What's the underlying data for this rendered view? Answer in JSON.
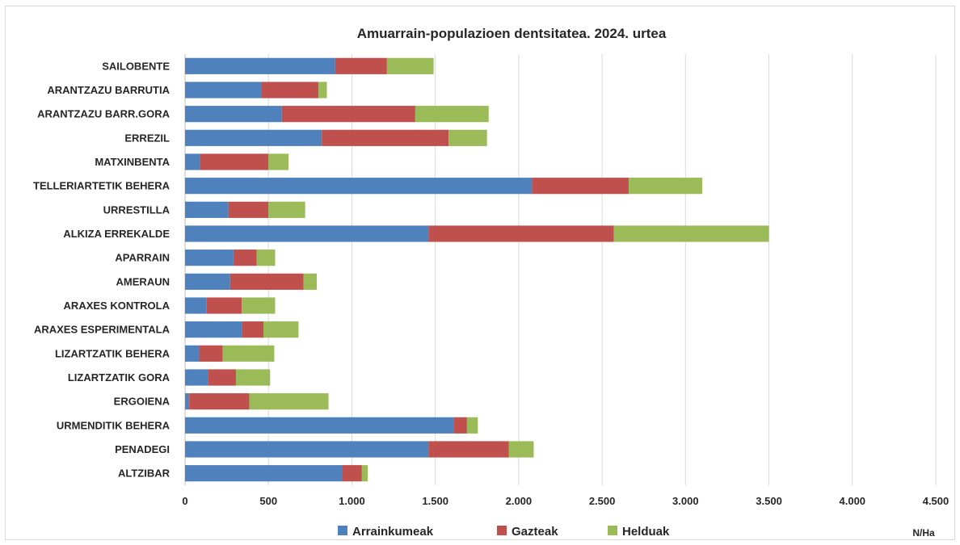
{
  "chart_data": {
    "type": "bar",
    "orientation": "horizontal",
    "stacked": true,
    "title": "Amuarrain-populazioen dentsitatea. 2024. urtea",
    "xlabel": "",
    "ylabel": "",
    "unit_label": "N/Ha",
    "xlim": [
      0,
      4500
    ],
    "xticks": [
      0,
      500,
      1000,
      1500,
      2000,
      2500,
      3000,
      3500,
      4000,
      4500
    ],
    "xtick_labels": [
      "0",
      "500",
      "1.000",
      "1.500",
      "2.000",
      "2.500",
      "3.000",
      "3.500",
      "4.000",
      "4.500"
    ],
    "grid": true,
    "legend_position": "bottom",
    "categories": [
      "SAILOBENTE",
      "ARANTZAZU BARRUTIA",
      "ARANTZAZU BARR.GORA",
      "ERREZIL",
      "MATXINBENTA",
      "TELLERIARTETIK BEHERA",
      "URRESTILLA",
      "ALKIZA ERREKALDE",
      "APARRAIN",
      "AMERAUN",
      "ARAXES KONTROLA",
      "ARAXES ESPERIMENTALA",
      "LIZARTZATIK BEHERA",
      "LIZARTZATIK GORA",
      "ERGOIENA",
      "URMENDITIK BEHERA",
      "PENADEGI",
      "ALTZIBAR"
    ],
    "series": [
      {
        "name": "Arrainkumeak",
        "color": "#4f81bd",
        "values": [
          900,
          460,
          580,
          820,
          90,
          2080,
          260,
          1460,
          290,
          270,
          130,
          340,
          85,
          140,
          25,
          1610,
          1460,
          940
        ]
      },
      {
        "name": "Gazteak",
        "color": "#c0504d",
        "values": [
          310,
          340,
          800,
          760,
          410,
          580,
          240,
          1110,
          140,
          440,
          210,
          130,
          140,
          165,
          360,
          80,
          480,
          120
        ]
      },
      {
        "name": "Helduak",
        "color": "#9bbb59",
        "values": [
          280,
          50,
          440,
          230,
          120,
          440,
          220,
          930,
          110,
          80,
          200,
          210,
          310,
          205,
          475,
          65,
          150,
          35
        ]
      }
    ]
  }
}
